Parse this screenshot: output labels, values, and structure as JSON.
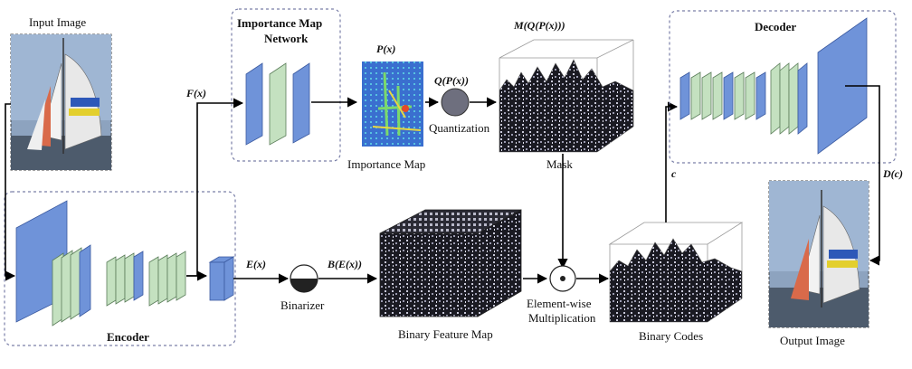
{
  "images": {
    "input_caption": "Input Image",
    "output_caption": "Output Image"
  },
  "importance_network": {
    "title_line1": "Importance Map",
    "title_line2": "Network"
  },
  "encoder": {
    "title": "Encoder"
  },
  "decoder": {
    "title": "Decoder"
  },
  "symbols": {
    "fx": "F(x)",
    "px": "P(x)",
    "qpx": "Q(P(x))",
    "mqpx": "M(Q(P(x)))",
    "ex": "E(x)",
    "bex": "B(E(x))",
    "c": "c",
    "dc": "D(c)"
  },
  "labels": {
    "quantization": "Quantization",
    "importance_map": "Importance Map",
    "mask": "Mask",
    "binarizer": "Binarizer",
    "binary_feature_map": "Binary Feature Map",
    "elementwise_line1": "Element-wise",
    "elementwise_line2": "Multiplication",
    "binary_codes": "Binary Codes"
  },
  "colors": {
    "layer_blue": "#6f93d9",
    "layer_green": "#c4e1c0",
    "dashed_box": "#7a7fa8",
    "quantization_circle": "#6e6f7e"
  }
}
